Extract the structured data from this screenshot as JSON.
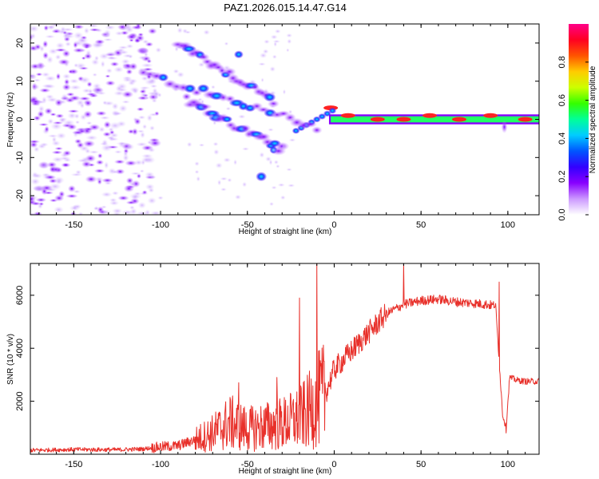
{
  "figure_title": "PAZ1.2026.015.14.47.G14",
  "colors": {
    "snr_line": "#e8302a",
    "axis": "#000000",
    "colorbar_stops": [
      "#ffffff",
      "#cc99ff",
      "#8800ff",
      "#3300ff",
      "#0055ff",
      "#00ccff",
      "#00ff99",
      "#33ff00",
      "#ccff00",
      "#ffcc00",
      "#ff5500",
      "#ff0022",
      "#ff0088"
    ]
  },
  "chart_data": [
    {
      "type": "heatmap",
      "title": "",
      "xlabel": "Height of straight line (km)",
      "ylabel": "Frequency (Hz)",
      "xlim": [
        -175,
        118
      ],
      "ylim": [
        -25,
        25
      ],
      "xticks": [
        -150,
        -100,
        -50,
        0,
        50,
        100
      ],
      "yticks": [
        -20,
        -10,
        0,
        10,
        20
      ],
      "colorbar": {
        "label": "Normalized spectral amplitude",
        "range": [
          0,
          1
        ],
        "ticks": [
          "0.0",
          "0.2",
          "0.4",
          "0.6",
          "0.8"
        ]
      },
      "features": [
        {
          "name": "main_tone",
          "from_x": 0,
          "to_x": 118,
          "freq": 0,
          "amplitude": 0.9
        },
        {
          "name": "ridge_a",
          "from_x": -110,
          "to_x": -10,
          "freq_start": 12,
          "freq_end": -2,
          "amplitude": 0.5
        },
        {
          "name": "ridge_b",
          "from_x": -90,
          "to_x": -35,
          "freq_start": 20,
          "freq_end": 5,
          "amplitude": 0.35
        },
        {
          "name": "ridge_c",
          "from_x": -85,
          "to_x": -30,
          "freq_start": 5,
          "freq_end": -8,
          "amplitude": 0.4
        },
        {
          "name": "spot",
          "x": -42,
          "freq": -15,
          "amplitude": 0.45
        },
        {
          "name": "noise_region",
          "from_x": -175,
          "to_x": -110,
          "amplitude": 0.3
        }
      ]
    },
    {
      "type": "line",
      "title": "",
      "xlabel": "Height of straight line (km)",
      "ylabel": "SNR (10 * v/v)",
      "xlim": [
        -175,
        118
      ],
      "ylim": [
        0,
        7200
      ],
      "xticks": [
        -150,
        -100,
        -50,
        0,
        50,
        100
      ],
      "yticks": [
        2000,
        4000,
        6000
      ],
      "series": [
        {
          "name": "SNR",
          "x": [
            -175,
            -150,
            -125,
            -110,
            -100,
            -90,
            -80,
            -70,
            -60,
            -50,
            -40,
            -30,
            -20,
            -15,
            -10,
            -5,
            0,
            10,
            20,
            30,
            40,
            50,
            60,
            70,
            80,
            88,
            93,
            95,
            97,
            99,
            101,
            105,
            110,
            118
          ],
          "values": [
            150,
            180,
            170,
            200,
            280,
            320,
            550,
            800,
            1200,
            950,
            1050,
            1150,
            1350,
            1600,
            2000,
            2300,
            3200,
            3900,
            4600,
            5300,
            5650,
            5800,
            5850,
            5750,
            5700,
            5650,
            5600,
            3500,
            1500,
            1000,
            2900,
            2800,
            2750,
            2750
          ],
          "spikes": [
            {
              "x": -55,
              "y": 2700
            },
            {
              "x": -33,
              "y": 2900
            },
            {
              "x": -20,
              "y": 5900
            },
            {
              "x": -10,
              "y": 7200
            },
            {
              "x": 40,
              "y": 7200
            },
            {
              "x": 95,
              "y": 6500
            },
            {
              "x": 99,
              "y": 800
            }
          ]
        }
      ]
    }
  ]
}
